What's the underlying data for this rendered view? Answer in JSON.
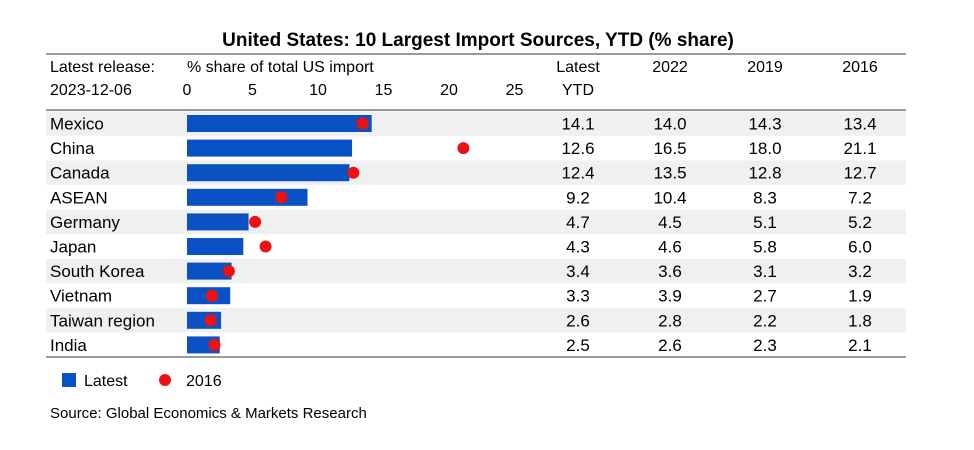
{
  "chart_data": {
    "type": "bar",
    "title": "United States: 10 Largest Import Sources, YTD (% share)",
    "release_label": "Latest release:",
    "release_date": "2023-12-06",
    "axis_title": "% share of total US import",
    "xlim": [
      0,
      25
    ],
    "xticks": [
      0,
      5,
      10,
      15,
      20,
      25
    ],
    "column_headers": [
      {
        "line1": "Latest",
        "line2": "YTD"
      },
      {
        "line1": "2022",
        "line2": ""
      },
      {
        "line1": "2019",
        "line2": ""
      },
      {
        "line1": "2016",
        "line2": ""
      }
    ],
    "categories": [
      "Mexico",
      "China",
      "Canada",
      "ASEAN",
      "Germany",
      "Japan",
      "South Korea",
      "Vietnam",
      "Taiwan region",
      "India"
    ],
    "series": [
      {
        "name": "Latest",
        "mark": "bar",
        "color": "#0a52c4",
        "values": [
          14.1,
          12.6,
          12.4,
          9.2,
          4.7,
          4.3,
          3.4,
          3.3,
          2.6,
          2.5
        ]
      },
      {
        "name": "2016",
        "mark": "dot",
        "color": "#ee1111",
        "values": [
          13.4,
          21.1,
          12.7,
          7.2,
          5.2,
          6.0,
          3.2,
          1.9,
          1.8,
          2.1
        ]
      }
    ],
    "table": [
      [
        "14.1",
        "14.0",
        "14.3",
        "13.4"
      ],
      [
        "12.6",
        "16.5",
        "18.0",
        "21.1"
      ],
      [
        "12.4",
        "13.5",
        "12.8",
        "12.7"
      ],
      [
        "9.2",
        "10.4",
        "8.3",
        "7.2"
      ],
      [
        "4.7",
        "4.5",
        "5.1",
        "5.2"
      ],
      [
        "4.3",
        "4.6",
        "5.8",
        "6.0"
      ],
      [
        "3.4",
        "3.6",
        "3.1",
        "3.2"
      ],
      [
        "3.3",
        "3.9",
        "2.7",
        "1.9"
      ],
      [
        "2.6",
        "2.8",
        "2.2",
        "1.8"
      ],
      [
        "2.5",
        "2.6",
        "2.3",
        "2.1"
      ]
    ],
    "legend": [
      {
        "label": "Latest",
        "shape": "square"
      },
      {
        "label": "2016",
        "shape": "dot"
      }
    ],
    "source": "Source: Global Economics & Markets Research",
    "row_stripe_color": "#f0f0f0",
    "rule_color": "#999999"
  }
}
